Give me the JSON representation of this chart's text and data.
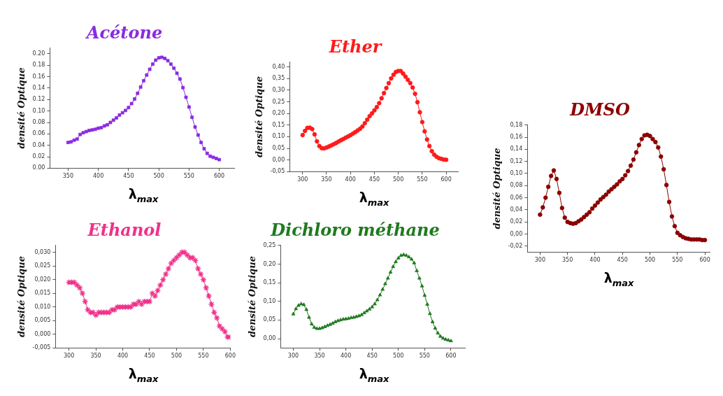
{
  "chart_data": [
    {
      "type": "line",
      "title": "Acétone",
      "xlabel": "λ$_{max}$",
      "ylabel": "densité Optique",
      "marker": "square",
      "xlim": [
        320,
        625
      ],
      "ylim": [
        0,
        0.21
      ],
      "xticks": [
        350,
        400,
        450,
        500,
        550,
        600
      ],
      "yticks": [
        {
          "value": 0,
          "label": "0.00"
        },
        {
          "value": 0.02,
          "label": "0.02"
        },
        {
          "value": 0.04,
          "label": "0.04"
        },
        {
          "value": 0.06,
          "label": "0.06"
        },
        {
          "value": 0.08,
          "label": "0.08"
        },
        {
          "value": 0.1,
          "label": "0.10"
        },
        {
          "value": 0.12,
          "label": "0.12"
        },
        {
          "value": 0.14,
          "label": "0.14"
        },
        {
          "value": 0.16,
          "label": "0.16"
        },
        {
          "value": 0.18,
          "label": "0.18"
        },
        {
          "value": 0.2,
          "label": "0.20"
        }
      ],
      "x": [
        350,
        355,
        360,
        365,
        370,
        375,
        380,
        385,
        390,
        395,
        400,
        405,
        410,
        415,
        420,
        425,
        430,
        435,
        440,
        445,
        450,
        455,
        460,
        465,
        470,
        475,
        480,
        485,
        490,
        495,
        500,
        505,
        510,
        515,
        520,
        525,
        530,
        535,
        540,
        545,
        550,
        555,
        560,
        565,
        570,
        575,
        580,
        585,
        590,
        595,
        600
      ],
      "series": [
        {
          "color": "#8a2be2",
          "values": [
            0.045,
            0.046,
            0.049,
            0.051,
            0.059,
            0.062,
            0.064,
            0.066,
            0.067,
            0.068,
            0.07,
            0.071,
            0.074,
            0.076,
            0.08,
            0.084,
            0.088,
            0.093,
            0.097,
            0.101,
            0.106,
            0.113,
            0.121,
            0.131,
            0.142,
            0.153,
            0.163,
            0.173,
            0.182,
            0.189,
            0.193,
            0.194,
            0.192,
            0.188,
            0.182,
            0.175,
            0.166,
            0.156,
            0.141,
            0.124,
            0.107,
            0.089,
            0.072,
            0.058,
            0.045,
            0.034,
            0.026,
            0.021,
            0.019,
            0.017,
            0.015
          ]
        }
      ]
    },
    {
      "type": "line",
      "title": "Ether",
      "xlabel": "λ$_{max}$",
      "ylabel": "densité Optique",
      "marker": "circle",
      "xlim": [
        273,
        625
      ],
      "ylim": [
        -0.05,
        0.42
      ],
      "xticks": [
        300,
        350,
        400,
        450,
        500,
        550,
        600
      ],
      "yticks": [
        {
          "value": -0.05,
          "label": "-0,05"
        },
        {
          "value": 0,
          "label": "0,00"
        },
        {
          "value": 0.05,
          "label": "0,05"
        },
        {
          "value": 0.1,
          "label": "0,10"
        },
        {
          "value": 0.15,
          "label": "0,15"
        },
        {
          "value": 0.2,
          "label": "0,20"
        },
        {
          "value": 0.25,
          "label": "0,25"
        },
        {
          "value": 0.3,
          "label": "0,30"
        },
        {
          "value": 0.35,
          "label": "0,35"
        },
        {
          "value": 0.4,
          "label": "0,40"
        }
      ],
      "x": [
        300,
        305,
        310,
        315,
        320,
        325,
        330,
        335,
        340,
        345,
        350,
        355,
        360,
        365,
        370,
        375,
        380,
        385,
        390,
        395,
        400,
        405,
        410,
        415,
        420,
        425,
        430,
        435,
        440,
        445,
        450,
        455,
        460,
        465,
        470,
        475,
        480,
        485,
        490,
        495,
        500,
        505,
        510,
        515,
        520,
        525,
        530,
        535,
        540,
        545,
        550,
        555,
        560,
        565,
        570,
        575,
        580,
        585,
        590,
        595,
        600
      ],
      "series": [
        {
          "color": "#ff1a1a",
          "values": [
            0.107,
            0.125,
            0.138,
            0.139,
            0.133,
            0.11,
            0.08,
            0.06,
            0.051,
            0.05,
            0.054,
            0.058,
            0.063,
            0.068,
            0.073,
            0.079,
            0.085,
            0.09,
            0.096,
            0.101,
            0.107,
            0.113,
            0.12,
            0.127,
            0.134,
            0.144,
            0.158,
            0.173,
            0.188,
            0.2,
            0.213,
            0.227,
            0.244,
            0.265,
            0.287,
            0.309,
            0.33,
            0.35,
            0.366,
            0.378,
            0.382,
            0.382,
            0.371,
            0.358,
            0.344,
            0.33,
            0.311,
            0.284,
            0.248,
            0.205,
            0.163,
            0.123,
            0.088,
            0.06,
            0.038,
            0.023,
            0.014,
            0.008,
            0.005,
            0.002,
            0.001
          ]
        }
      ]
    },
    {
      "type": "line",
      "title": "DMSO",
      "xlabel": "λ$_{max}$",
      "ylabel": "densité Optique",
      "marker": "circle",
      "xlim": [
        277,
        609
      ],
      "ylim": [
        -0.03,
        0.18
      ],
      "xticks": [
        300,
        350,
        400,
        450,
        500,
        550,
        600
      ],
      "yticks": [
        {
          "value": -0.02,
          "label": "-0,02"
        },
        {
          "value": 0,
          "label": "0,00"
        },
        {
          "value": 0.02,
          "label": "0,02"
        },
        {
          "value": 0.04,
          "label": "0,04"
        },
        {
          "value": 0.06,
          "label": "0,06"
        },
        {
          "value": 0.08,
          "label": "0,08"
        },
        {
          "value": 0.1,
          "label": "0,10"
        },
        {
          "value": 0.12,
          "label": "0,12"
        },
        {
          "value": 0.14,
          "label": "0,14"
        },
        {
          "value": 0.16,
          "label": "0,16"
        },
        {
          "value": 0.18,
          "label": "0,18"
        }
      ],
      "x": [
        300,
        305,
        310,
        315,
        320,
        325,
        330,
        335,
        340,
        345,
        350,
        355,
        360,
        365,
        370,
        375,
        380,
        385,
        390,
        395,
        400,
        405,
        410,
        415,
        420,
        425,
        430,
        435,
        440,
        445,
        450,
        455,
        460,
        465,
        470,
        475,
        480,
        485,
        490,
        495,
        500,
        505,
        510,
        515,
        520,
        525,
        530,
        535,
        540,
        545,
        550,
        555,
        560,
        565,
        570,
        575,
        580,
        585,
        590,
        595,
        600
      ],
      "series": [
        {
          "color": "#8b0000",
          "values": [
            0.032,
            0.044,
            0.06,
            0.078,
            0.096,
            0.105,
            0.091,
            0.068,
            0.043,
            0.027,
            0.02,
            0.018,
            0.017,
            0.018,
            0.021,
            0.024,
            0.028,
            0.032,
            0.036,
            0.042,
            0.047,
            0.052,
            0.057,
            0.061,
            0.065,
            0.07,
            0.074,
            0.078,
            0.082,
            0.087,
            0.091,
            0.097,
            0.104,
            0.113,
            0.123,
            0.135,
            0.147,
            0.157,
            0.163,
            0.164,
            0.162,
            0.157,
            0.152,
            0.143,
            0.128,
            0.107,
            0.081,
            0.053,
            0.029,
            0.013,
            0.002,
            -0.002,
            -0.005,
            -0.007,
            -0.008,
            -0.009,
            -0.009,
            -0.009,
            -0.009,
            -0.01,
            -0.01
          ]
        }
      ]
    },
    {
      "type": "line",
      "title": "Ethanol",
      "xlabel": "λ$_{max}$",
      "ylabel": "densité Optique",
      "marker": "cross",
      "xlim": [
        275,
        600
      ],
      "ylim": [
        -0.005,
        0.0325
      ],
      "xticks": [
        300,
        350,
        400,
        450,
        500,
        550,
        600
      ],
      "yticks": [
        {
          "value": -0.005,
          "label": "-0,005"
        },
        {
          "value": 0,
          "label": "0,000"
        },
        {
          "value": 0.005,
          "label": "0,005"
        },
        {
          "value": 0.01,
          "label": "0,010"
        },
        {
          "value": 0.015,
          "label": "0,015"
        },
        {
          "value": 0.02,
          "label": "0,020"
        },
        {
          "value": 0.025,
          "label": "0,025"
        },
        {
          "value": 0.03,
          "label": "0,030"
        }
      ],
      "x": [
        300,
        305,
        310,
        315,
        320,
        325,
        330,
        335,
        340,
        345,
        350,
        355,
        360,
        365,
        370,
        375,
        380,
        385,
        390,
        395,
        400,
        405,
        410,
        415,
        420,
        425,
        430,
        435,
        440,
        445,
        450,
        455,
        460,
        465,
        470,
        475,
        480,
        485,
        490,
        495,
        500,
        505,
        510,
        515,
        520,
        525,
        530,
        535,
        540,
        545,
        550,
        555,
        560,
        565,
        570,
        575,
        580,
        585,
        590,
        595,
        600
      ],
      "series": [
        {
          "color": "#f0308a",
          "values": [
            0.019,
            0.019,
            0.019,
            0.018,
            0.017,
            0.015,
            0.012,
            0.009,
            0.008,
            0.008,
            0.007,
            0.008,
            0.008,
            0.008,
            0.008,
            0.008,
            0.009,
            0.009,
            0.01,
            0.01,
            0.01,
            0.01,
            0.01,
            0.01,
            0.011,
            0.011,
            0.012,
            0.011,
            0.012,
            0.012,
            0.012,
            0.015,
            0.014,
            0.016,
            0.018,
            0.02,
            0.022,
            0.024,
            0.026,
            0.027,
            0.028,
            0.029,
            0.03,
            0.03,
            0.029,
            0.028,
            0.028,
            0.027,
            0.024,
            0.022,
            0.02,
            0.017,
            0.014,
            0.011,
            0.008,
            0.006,
            0.003,
            0.002,
            0.001,
            -0.001,
            -0.001
          ]
        }
      ]
    },
    {
      "type": "line",
      "title": "Dichloro méthane",
      "xlabel": "λ$_{max}$",
      "ylabel": "densité Optique",
      "marker": "triangle",
      "xlim": [
        276,
        627
      ],
      "ylim": [
        -0.025,
        0.25
      ],
      "xticks": [
        300,
        350,
        400,
        450,
        500,
        550,
        600
      ],
      "yticks": [
        {
          "value": 0,
          "label": "0,00"
        },
        {
          "value": 0.05,
          "label": "0,05"
        },
        {
          "value": 0.1,
          "label": "0,10"
        },
        {
          "value": 0.15,
          "label": "0,15"
        },
        {
          "value": 0.2,
          "label": "0,20"
        },
        {
          "value": 0.25,
          "label": "0,25"
        }
      ],
      "x": [
        300,
        305,
        310,
        315,
        320,
        325,
        330,
        335,
        340,
        345,
        350,
        355,
        360,
        365,
        370,
        375,
        380,
        385,
        390,
        395,
        400,
        405,
        410,
        415,
        420,
        425,
        430,
        435,
        440,
        445,
        450,
        455,
        460,
        465,
        470,
        475,
        480,
        485,
        490,
        495,
        500,
        505,
        510,
        515,
        520,
        525,
        530,
        535,
        540,
        545,
        550,
        555,
        560,
        565,
        570,
        575,
        580,
        585,
        590,
        595,
        600
      ],
      "series": [
        {
          "color": "#1f7a1f",
          "values": [
            0.066,
            0.08,
            0.089,
            0.093,
            0.091,
            0.078,
            0.057,
            0.039,
            0.03,
            0.027,
            0.027,
            0.029,
            0.032,
            0.035,
            0.038,
            0.041,
            0.045,
            0.048,
            0.05,
            0.052,
            0.053,
            0.054,
            0.056,
            0.057,
            0.059,
            0.061,
            0.064,
            0.069,
            0.074,
            0.079,
            0.085,
            0.093,
            0.104,
            0.117,
            0.132,
            0.147,
            0.162,
            0.178,
            0.193,
            0.206,
            0.216,
            0.223,
            0.225,
            0.223,
            0.219,
            0.213,
            0.203,
            0.182,
            0.162,
            0.141,
            0.116,
            0.092,
            0.067,
            0.045,
            0.028,
            0.015,
            0.006,
            0.001,
            -0.002,
            -0.004,
            -0.006
          ]
        }
      ]
    }
  ]
}
